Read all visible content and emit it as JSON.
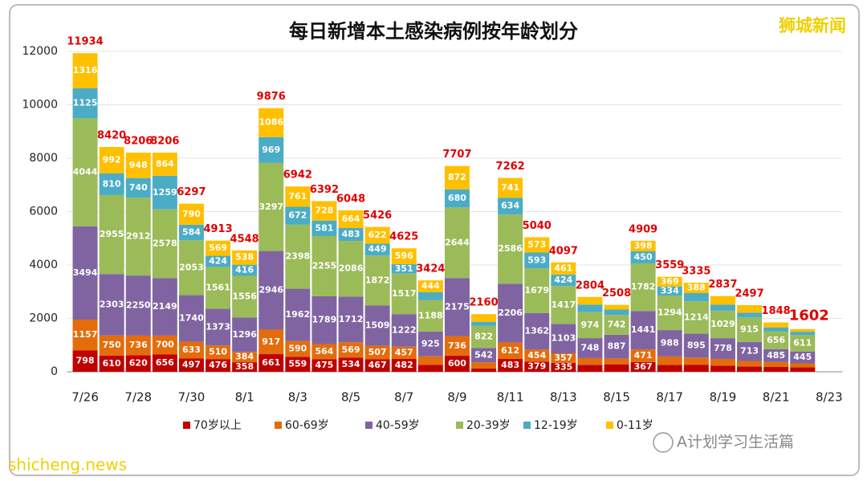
{
  "chart_data": {
    "type": "stacked_bar",
    "title": "每日新增本土感染病例按年龄划分",
    "watermarks": [
      "狮城新闻",
      "shicheng.news",
      "A计划学习生活篇"
    ],
    "categories": [
      "7/26",
      null,
      "7/28",
      null,
      "7/30",
      null,
      "8/1",
      null,
      "8/3",
      null,
      "8/5",
      null,
      "8/7",
      null,
      "8/9",
      null,
      "8/11",
      null,
      "8/13",
      null,
      "8/15",
      null,
      "8/17",
      null,
      "8/19",
      null,
      "8/21",
      null,
      "8/23"
    ],
    "totals": [
      11934,
      8420,
      8206,
      8206,
      6297,
      4913,
      4548,
      9876,
      6942,
      6392,
      6048,
      5426,
      4625,
      3424,
      7707,
      2160,
      7262,
      5040,
      4097,
      2804,
      2508,
      4909,
      3559,
      3335,
      2837,
      2497,
      1848,
      1602,
      null
    ],
    "series": [
      {
        "name": "70岁以上",
        "color": "#c00000",
        "values": [
          798,
          610,
          620,
          656,
          497,
          476,
          358,
          661,
          559,
          475,
          534,
          467,
          482,
          264,
          600,
          122,
          483,
          379,
          335,
          262,
          281,
          367,
          262,
          266,
          232,
          200,
          180,
          164,
          null
        ]
      },
      {
        "name": "60-69岁",
        "color": "#e46c0a",
        "values": [
          1157,
          750,
          736,
          700,
          633,
          510,
          384,
          917,
          590,
          564,
          569,
          507,
          457,
          314,
          736,
          231,
          612,
          454,
          357,
          251,
          218,
          471,
          312,
          265,
          250,
          205,
          186,
          152,
          null
        ]
      },
      {
        "name": "40-59岁",
        "color": "#8064a2",
        "values": [
          3494,
          2303,
          2250,
          2149,
          1740,
          1373,
          1296,
          2946,
          1962,
          1789,
          1712,
          1509,
          1222,
          925,
          2175,
          542,
          2206,
          1362,
          1103,
          748,
          887,
          1441,
          988,
          895,
          778,
          713,
          485,
          445,
          null
        ]
      },
      {
        "name": "20-39岁",
        "color": "#9bbb59",
        "values": [
          4044,
          2955,
          2912,
          2578,
          2053,
          1561,
          1556,
          3297,
          2398,
          2255,
          2086,
          1872,
          1517,
          1188,
          2644,
          822,
          2586,
          1679,
          1417,
          974,
          742,
          1782,
          1294,
          1214,
          1029,
          915,
          656,
          611,
          null
        ]
      },
      {
        "name": "12-19岁",
        "color": "#4bacc6",
        "values": [
          1125,
          810,
          740,
          1259,
          584,
          424,
          416,
          969,
          672,
          581,
          483,
          449,
          351,
          289,
          680,
          155,
          634,
          593,
          424,
          280,
          203,
          450,
          334,
          307,
          224,
          181,
          157,
          128,
          null
        ]
      },
      {
        "name": "0-11岁",
        "color": "#ffc000",
        "values": [
          1316,
          992,
          948,
          864,
          790,
          569,
          538,
          1086,
          761,
          728,
          664,
          622,
          596,
          444,
          872,
          288,
          741,
          573,
          461,
          289,
          177,
          398,
          369,
          388,
          324,
          283,
          184,
          102,
          null
        ]
      }
    ],
    "ylim": [
      0,
      12000
    ],
    "yticks": [
      0,
      2000,
      4000,
      6000,
      8000,
      10000,
      12000
    ],
    "grid": true,
    "legend": "bottom"
  }
}
